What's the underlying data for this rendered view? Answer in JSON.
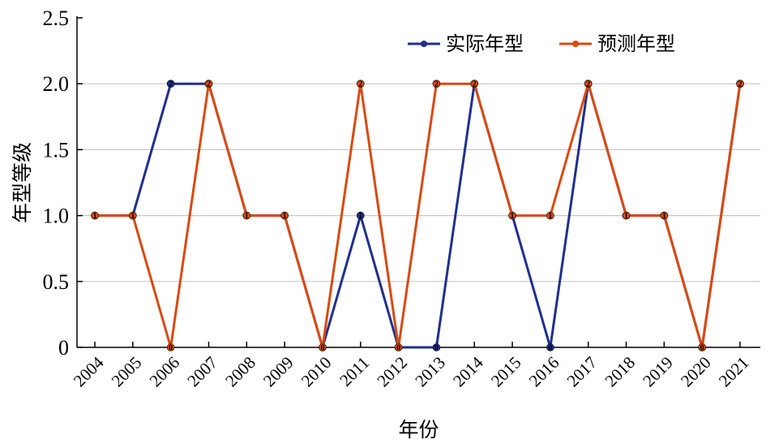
{
  "chart_data": {
    "type": "line",
    "title": "",
    "xlabel": "年份",
    "ylabel": "年型等级",
    "ylim": [
      0,
      2.5
    ],
    "yticks": [
      "0",
      "0.5",
      "1.0",
      "1.5",
      "2.0",
      "2.5"
    ],
    "yticks_values": [
      0,
      0.5,
      1.0,
      1.5,
      2.0,
      2.5
    ],
    "categories": [
      "2004",
      "2005",
      "2006",
      "2007",
      "2008",
      "2009",
      "2010",
      "2011",
      "2012",
      "2013",
      "2014",
      "2015",
      "2016",
      "2017",
      "2018",
      "2019",
      "2020",
      "2021"
    ],
    "grid": true,
    "legend_position": "top-right",
    "series": [
      {
        "name": "实际年型",
        "color": "#1f2f8f",
        "values": [
          1,
          1,
          2,
          2,
          1,
          1,
          0,
          1,
          0,
          0,
          2,
          1,
          0,
          2,
          1,
          1,
          0,
          2
        ]
      },
      {
        "name": "预测年型",
        "color": "#d94a10",
        "values": [
          1,
          1,
          0,
          2,
          1,
          1,
          0,
          2,
          0,
          2,
          2,
          1,
          1,
          2,
          1,
          1,
          0,
          2
        ]
      }
    ]
  }
}
